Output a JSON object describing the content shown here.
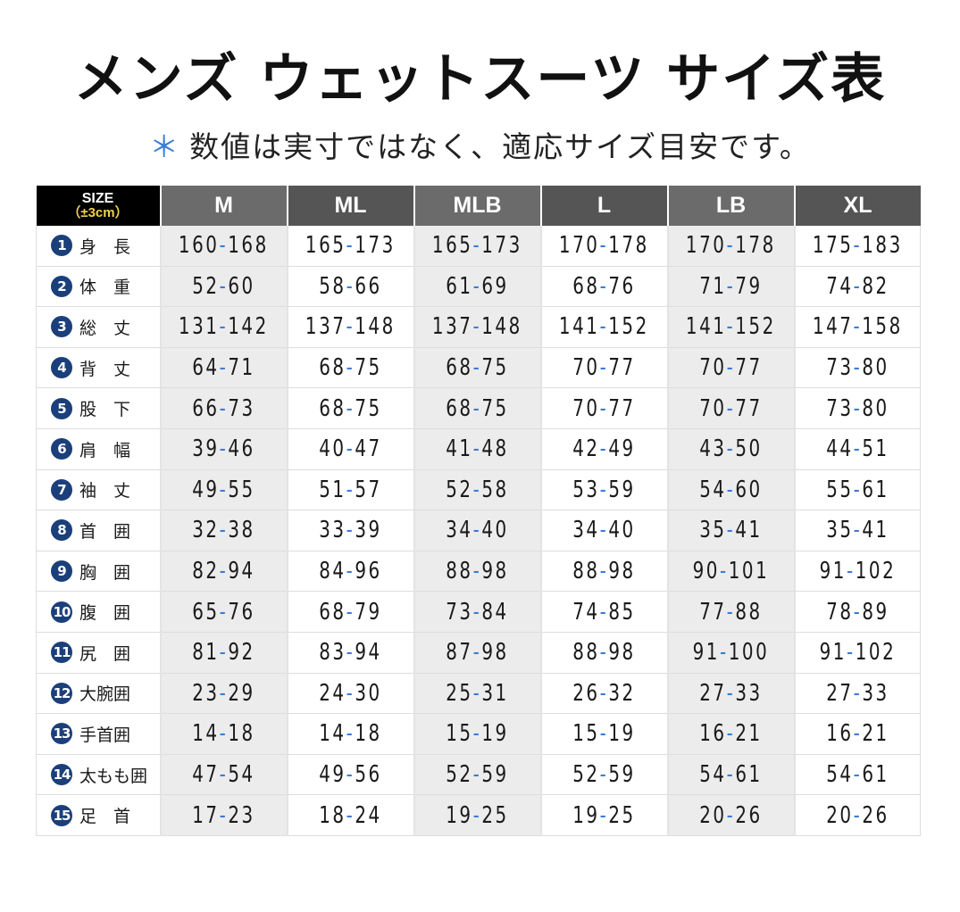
{
  "title": "メンズ ウェットスーツ サイズ表",
  "subtitle": {
    "asterisk": "＊",
    "text": "数値は実寸ではなく、適応サイズ目安です。"
  },
  "colors": {
    "header_black": "#000000",
    "header_gray_light": "#6b6b6b",
    "header_gray_dark": "#555555",
    "number_badge": "#1b3f7a",
    "dash_accent": "#3a7bd5",
    "size_note": "#f0d24a",
    "shaded_column": "#ececec"
  },
  "table": {
    "corner": {
      "line1": "SIZE",
      "line2": "（±3cm）"
    },
    "columns": [
      "M",
      "ML",
      "MLB",
      "L",
      "LB",
      "XL"
    ],
    "rows": [
      {
        "num": "1",
        "label": "身　長",
        "values": [
          "160-168",
          "165-173",
          "165-173",
          "170-178",
          "170-178",
          "175-183"
        ]
      },
      {
        "num": "2",
        "label": "体　重",
        "values": [
          "52-60",
          "58-66",
          "61-69",
          "68-76",
          "71-79",
          "74-82"
        ]
      },
      {
        "num": "3",
        "label": "総　丈",
        "values": [
          "131-142",
          "137-148",
          "137-148",
          "141-152",
          "141-152",
          "147-158"
        ]
      },
      {
        "num": "4",
        "label": "背　丈",
        "values": [
          "64-71",
          "68-75",
          "68-75",
          "70-77",
          "70-77",
          "73-80"
        ]
      },
      {
        "num": "5",
        "label": "股　下",
        "values": [
          "66-73",
          "68-75",
          "68-75",
          "70-77",
          "70-77",
          "73-80"
        ]
      },
      {
        "num": "6",
        "label": "肩　幅",
        "values": [
          "39-46",
          "40-47",
          "41-48",
          "42-49",
          "43-50",
          "44-51"
        ]
      },
      {
        "num": "7",
        "label": "袖　丈",
        "values": [
          "49-55",
          "51-57",
          "52-58",
          "53-59",
          "54-60",
          "55-61"
        ]
      },
      {
        "num": "8",
        "label": "首　囲",
        "values": [
          "32-38",
          "33-39",
          "34-40",
          "34-40",
          "35-41",
          "35-41"
        ]
      },
      {
        "num": "9",
        "label": "胸　囲",
        "values": [
          "82-94",
          "84-96",
          "88-98",
          "88-98",
          "90-101",
          "91-102"
        ]
      },
      {
        "num": "10",
        "label": "腹　囲",
        "values": [
          "65-76",
          "68-79",
          "73-84",
          "74-85",
          "77-88",
          "78-89"
        ]
      },
      {
        "num": "11",
        "label": "尻　囲",
        "values": [
          "81-92",
          "83-94",
          "87-98",
          "88-98",
          "91-100",
          "91-102"
        ]
      },
      {
        "num": "12",
        "label": "大腕囲",
        "values": [
          "23-29",
          "24-30",
          "25-31",
          "26-32",
          "27-33",
          "27-33"
        ]
      },
      {
        "num": "13",
        "label": "手首囲",
        "values": [
          "14-18",
          "14-18",
          "15-19",
          "15-19",
          "16-21",
          "16-21"
        ]
      },
      {
        "num": "14",
        "label": "太もも囲",
        "values": [
          "47-54",
          "49-56",
          "52-59",
          "52-59",
          "54-61",
          "54-61"
        ]
      },
      {
        "num": "15",
        "label": "足　首",
        "values": [
          "17-23",
          "18-24",
          "19-25",
          "19-25",
          "20-26",
          "20-26"
        ]
      }
    ]
  }
}
